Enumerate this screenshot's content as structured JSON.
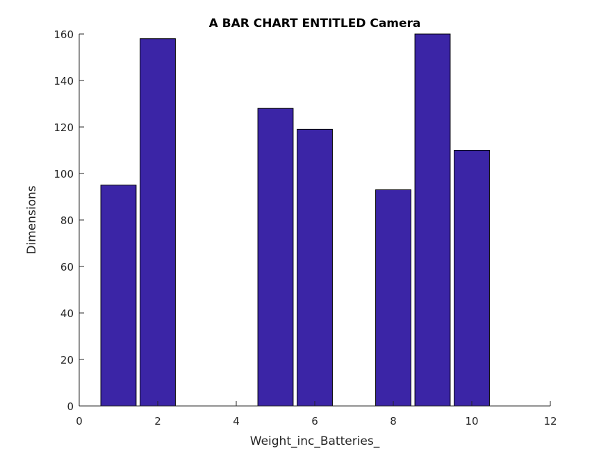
{
  "chart_data": {
    "type": "bar",
    "title": "A BAR CHART ENTITLED Camera",
    "xlabel": "Weight_inc_Batteries_",
    "ylabel": "Dimensions",
    "x": [
      1,
      2,
      3,
      4,
      5,
      6,
      7,
      8,
      9,
      10
    ],
    "values": [
      95,
      158,
      0,
      0,
      128,
      119,
      0,
      93,
      160,
      110
    ],
    "xlim": [
      0,
      12
    ],
    "ylim": [
      0,
      160
    ],
    "xticks": [
      0,
      2,
      4,
      6,
      8,
      10,
      12
    ],
    "yticks": [
      0,
      20,
      40,
      60,
      80,
      100,
      120,
      140,
      160
    ],
    "bar_color": "#3b25a6",
    "bar_edge_color": "#000000",
    "grid": false,
    "legend": "none"
  }
}
